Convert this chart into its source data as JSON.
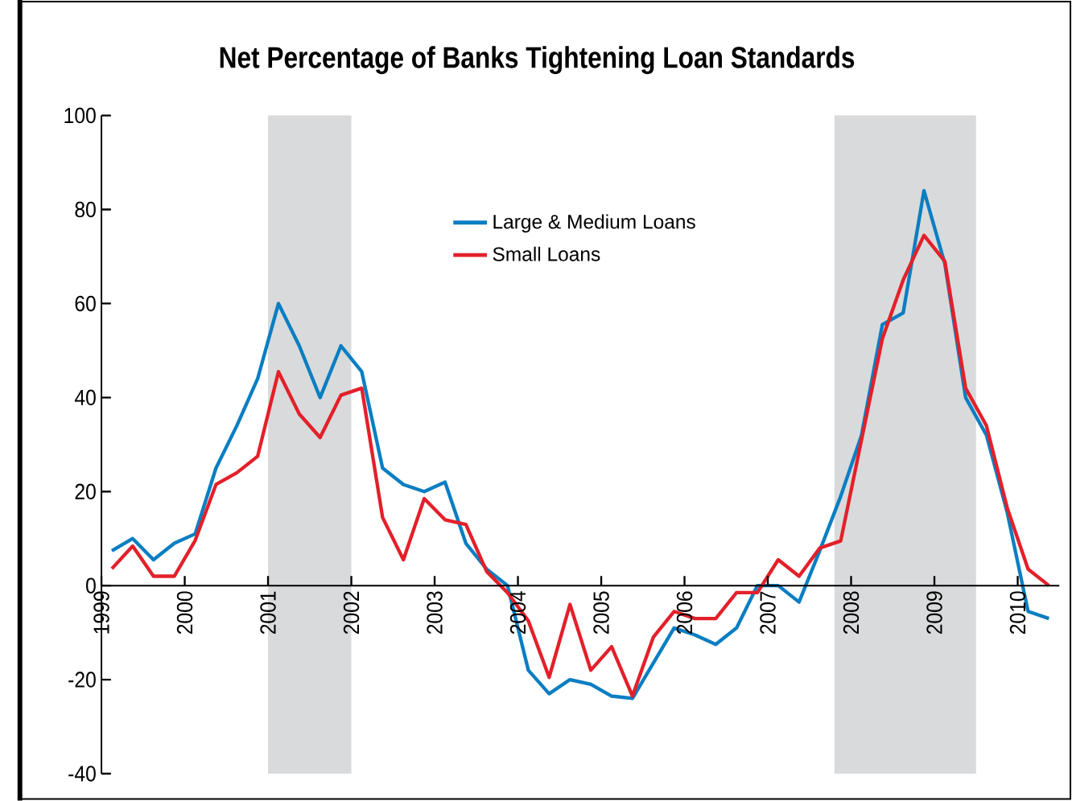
{
  "chart_data": {
    "type": "line",
    "title": "Net Percentage of Banks Tightening Loan Standards",
    "x": [
      1999.125,
      1999.375,
      1999.625,
      1999.875,
      2000.125,
      2000.375,
      2000.625,
      2000.875,
      2001.125,
      2001.375,
      2001.625,
      2001.875,
      2002.125,
      2002.375,
      2002.625,
      2002.875,
      2003.125,
      2003.375,
      2003.625,
      2003.875,
      2004.125,
      2004.375,
      2004.625,
      2004.875,
      2005.125,
      2005.375,
      2005.625,
      2005.875,
      2006.125,
      2006.375,
      2006.625,
      2006.875,
      2007.125,
      2007.375,
      2007.625,
      2007.875,
      2008.125,
      2008.375,
      2008.625,
      2008.875,
      2009.125,
      2009.375,
      2009.625,
      2009.875,
      2010.125,
      2010.375
    ],
    "series": [
      {
        "name": "Large & Medium Loans",
        "color": "#0a7ec2",
        "values": [
          7.4,
          10,
          5.5,
          9,
          11,
          25,
          34,
          44,
          60,
          51,
          40,
          51,
          45.5,
          25,
          21.5,
          20,
          22,
          9,
          3.5,
          0,
          -18,
          -23,
          -20,
          -21,
          -23.5,
          -24,
          -16.5,
          -9,
          -10.5,
          -12.5,
          -9,
          0,
          0,
          -3.5,
          7.5,
          19,
          32,
          55.5,
          58,
          84,
          68.5,
          40,
          32,
          15.5,
          -5.5,
          -7
        ]
      },
      {
        "name": "Small Loans",
        "color": "#e3202a",
        "values": [
          3.6,
          8.4,
          2,
          2,
          9.6,
          21.5,
          24,
          27.5,
          45.5,
          36.5,
          31.5,
          40.5,
          42,
          14.5,
          5.5,
          18.5,
          14,
          13,
          3,
          -1.5,
          -7.5,
          -19.5,
          -4,
          -18,
          -13,
          -23.5,
          -11,
          -5.5,
          -7,
          -7,
          -1.5,
          -1.5,
          5.5,
          2,
          8,
          9.5,
          31,
          52.5,
          65,
          74.5,
          69,
          42,
          34,
          16.5,
          3.5,
          0
        ]
      }
    ],
    "xlim": [
      1999,
      2010.5
    ],
    "xticks": [
      1999,
      2000,
      2001,
      2002,
      2003,
      2004,
      2005,
      2006,
      2007,
      2008,
      2009,
      2010
    ],
    "ylim": [
      -40,
      100
    ],
    "yticks": [
      -40,
      -20,
      0,
      20,
      40,
      60,
      80,
      100
    ],
    "bands": [
      {
        "axis": "x",
        "from": 2001,
        "to": 2002,
        "color": "#d9dadb"
      },
      {
        "axis": "x",
        "from": 2007.8,
        "to": 2009.5,
        "color": "#d9dadb"
      }
    ],
    "legend": "top",
    "grid": false,
    "marker": "none",
    "line_style": "solid"
  }
}
